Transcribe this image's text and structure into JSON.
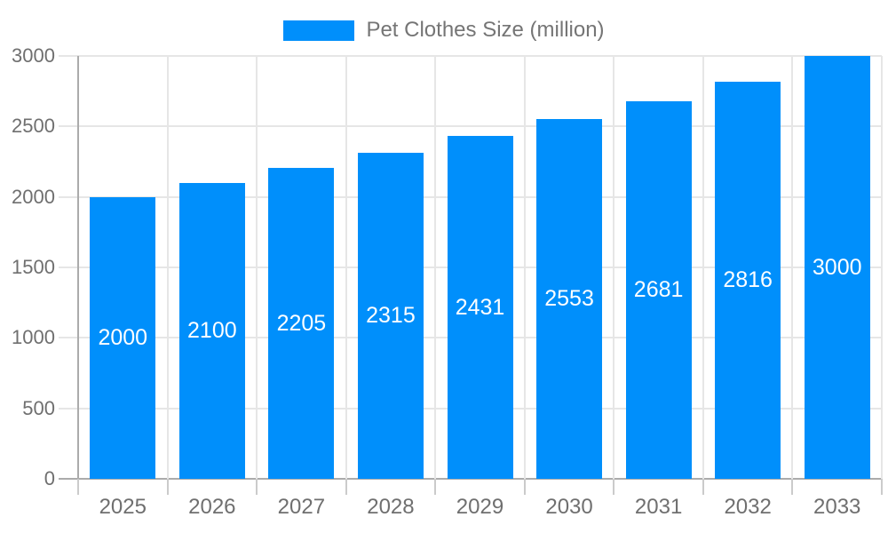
{
  "chart_data": {
    "type": "bar",
    "title": "Pet Clothes Size (million)",
    "categories": [
      "2025",
      "2026",
      "2027",
      "2028",
      "2029",
      "2030",
      "2031",
      "2032",
      "2033"
    ],
    "values": [
      2000,
      2100,
      2205,
      2315,
      2431,
      2553,
      2681,
      2816,
      3000
    ],
    "xlabel": "",
    "ylabel": "",
    "ylim": [
      0,
      3000
    ],
    "yticks": [
      0,
      500,
      1000,
      1500,
      2000,
      2500,
      3000
    ],
    "grid": true,
    "legend_position": "top-center",
    "bar_color": "#008FFB",
    "value_label_color": "#FFFFFF",
    "axis_text_color": "#6F6F6F",
    "legend_text_color": "#757575",
    "grid_color": "#E6E6E6",
    "axis_line_color": "#ABABAB",
    "tick_color": "#CBCBCB",
    "background_color": "#FFFFFF"
  }
}
